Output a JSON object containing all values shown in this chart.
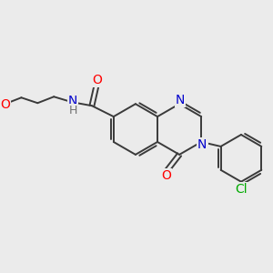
{
  "background_color": "#ebebeb",
  "bond_color": "#3a3a3a",
  "atom_colors": {
    "O": "#ff0000",
    "N": "#0000cc",
    "Cl": "#00aa00",
    "H": "#707070",
    "C": "#3a3a3a"
  },
  "font_size_atoms": 10,
  "font_size_small": 9,
  "figsize": [
    3.0,
    3.0
  ],
  "dpi": 100
}
